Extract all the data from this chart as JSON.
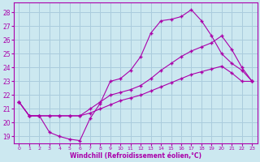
{
  "xlabel": "Windchill (Refroidissement éolien,°C)",
  "ylabel": "",
  "bg_color": "#cce8f0",
  "grid_color": "#aaccdd",
  "line_color": "#aa00aa",
  "xlim": [
    -0.5,
    23.5
  ],
  "ylim": [
    18.5,
    28.7
  ],
  "xticks": [
    0,
    1,
    2,
    3,
    4,
    5,
    6,
    7,
    8,
    9,
    10,
    11,
    12,
    13,
    14,
    15,
    16,
    17,
    18,
    19,
    20,
    21,
    22,
    23
  ],
  "yticks": [
    19,
    20,
    21,
    22,
    23,
    24,
    25,
    26,
    27,
    28
  ],
  "line1_x": [
    0,
    1,
    2,
    3,
    4,
    5,
    6,
    7,
    8,
    9,
    10,
    11,
    12,
    13,
    14,
    15,
    16,
    17,
    18,
    19,
    20,
    21,
    22,
    23
  ],
  "line1_y": [
    21.5,
    20.5,
    20.5,
    19.3,
    19.0,
    18.8,
    18.7,
    20.3,
    21.4,
    23.0,
    23.2,
    23.8,
    24.8,
    26.5,
    27.4,
    27.5,
    27.7,
    28.2,
    27.4,
    26.3,
    25.0,
    24.3,
    23.8,
    23.0
  ],
  "line2_x": [
    0,
    1,
    2,
    3,
    4,
    5,
    6,
    7,
    8,
    9,
    10,
    11,
    12,
    13,
    14,
    15,
    16,
    17,
    18,
    19,
    20,
    21,
    22,
    23
  ],
  "line2_y": [
    21.5,
    20.5,
    20.5,
    20.5,
    20.5,
    20.5,
    20.5,
    21.0,
    21.5,
    22.0,
    22.2,
    22.4,
    22.7,
    23.2,
    23.8,
    24.3,
    24.8,
    25.2,
    25.5,
    25.8,
    26.3,
    25.3,
    24.0,
    23.0
  ],
  "line3_x": [
    0,
    1,
    2,
    3,
    4,
    5,
    6,
    7,
    8,
    9,
    10,
    11,
    12,
    13,
    14,
    15,
    16,
    17,
    18,
    19,
    20,
    21,
    22,
    23
  ],
  "line3_y": [
    21.5,
    20.5,
    20.5,
    20.5,
    20.5,
    20.5,
    20.5,
    20.7,
    21.0,
    21.3,
    21.6,
    21.8,
    22.0,
    22.3,
    22.6,
    22.9,
    23.2,
    23.5,
    23.7,
    23.9,
    24.1,
    23.6,
    23.0,
    23.0
  ]
}
